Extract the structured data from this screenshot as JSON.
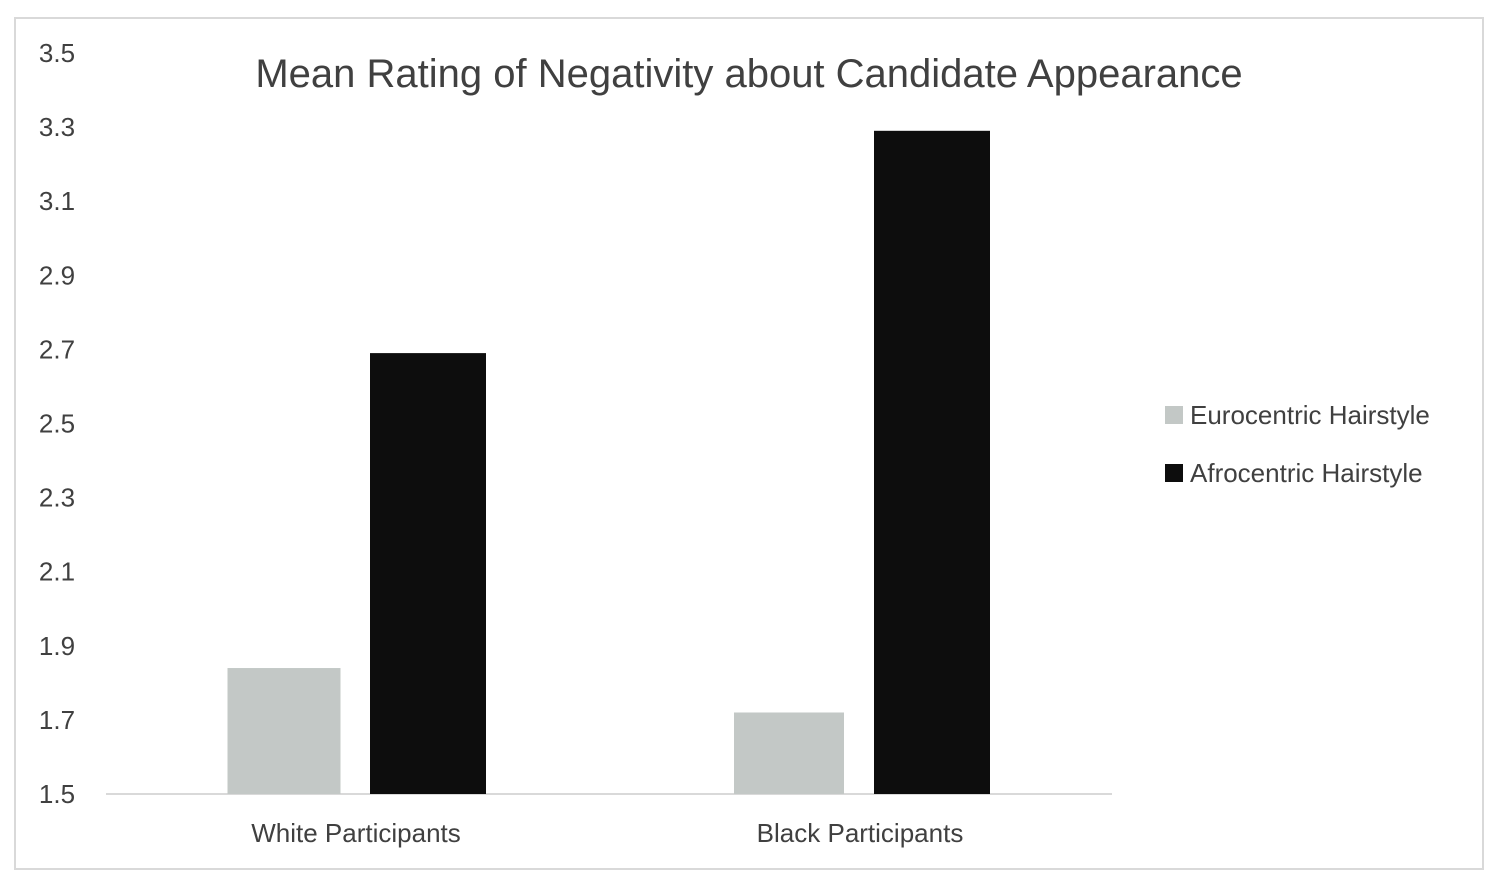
{
  "chart_data": {
    "type": "bar",
    "title": "Mean Rating of Negativity about Candidate Appearance",
    "categories": [
      "White Participants",
      "Black Participants"
    ],
    "series": [
      {
        "name": "Eurocentric Hairstyle",
        "color": "#c3c8c6",
        "values": [
          1.84,
          1.72
        ]
      },
      {
        "name": "Afrocentric Hairstyle",
        "color": "#0d0d0d",
        "values": [
          2.69,
          3.29
        ]
      }
    ],
    "ylim": [
      1.5,
      3.5
    ],
    "yticks": [
      "1.5",
      "1.7",
      "1.9",
      "2.1",
      "2.3",
      "2.5",
      "2.7",
      "2.9",
      "3.1",
      "3.3",
      "3.5"
    ],
    "grid": false,
    "legend_position": "right",
    "xlabel": "",
    "ylabel": ""
  }
}
